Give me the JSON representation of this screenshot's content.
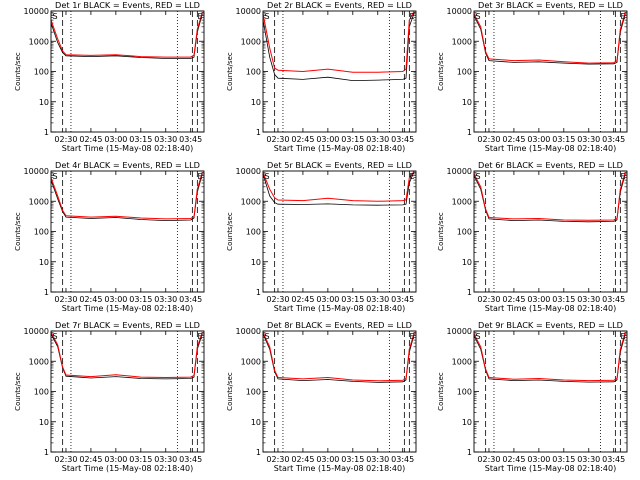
{
  "chart_data": [
    {
      "type": "line",
      "title": "Det 1r BLACK = Events, RED = LLD",
      "xlabel": "Start Time (15-May-08 02:18:40)",
      "ylabel": "Counts/sec",
      "y_scale": "log",
      "ylim": [
        1,
        10000
      ],
      "y_ticks": [
        "1",
        "10",
        "100",
        "1000",
        "10000"
      ],
      "xlim": [
        "02:21",
        "03:53"
      ],
      "x_ticks": [
        "02:30",
        "02:45",
        "03:00",
        "03:15",
        "03:30",
        "03:45"
      ],
      "markers": [
        "S",
        "E"
      ],
      "series": [
        {
          "name": "Events",
          "color": "#000000",
          "x": [
            "02:21",
            "02:25",
            "02:28",
            "02:30",
            "02:45",
            "03:00",
            "03:15",
            "03:30",
            "03:45",
            "03:47",
            "03:49",
            "03:52"
          ],
          "values": [
            4000,
            900,
            420,
            330,
            310,
            330,
            290,
            270,
            270,
            300,
            2000,
            8000
          ]
        },
        {
          "name": "LLD",
          "color": "#ff0000",
          "x": [
            "02:21",
            "02:25",
            "02:28",
            "02:30",
            "02:45",
            "03:00",
            "03:15",
            "03:30",
            "03:45",
            "03:47",
            "03:49",
            "03:52"
          ],
          "values": [
            5000,
            1200,
            480,
            360,
            340,
            360,
            310,
            300,
            300,
            350,
            2500,
            9000
          ]
        }
      ]
    },
    {
      "type": "line",
      "title": "Det 2r BLACK = Events, RED = LLD",
      "xlabel": "Start Time (15-May-08 02:18:40)",
      "ylabel": "Counts/sec",
      "y_scale": "log",
      "ylim": [
        1,
        10000
      ],
      "y_ticks": [
        "1",
        "10",
        "100",
        "1000",
        "10000"
      ],
      "xlim": [
        "02:21",
        "03:53"
      ],
      "x_ticks": [
        "02:30",
        "02:45",
        "03:00",
        "03:15",
        "03:30",
        "03:45"
      ],
      "markers": [
        "S",
        "E"
      ],
      "series": [
        {
          "name": "Events",
          "color": "#000000",
          "x": [
            "02:21",
            "02:25",
            "02:28",
            "02:30",
            "02:45",
            "03:00",
            "03:15",
            "03:30",
            "03:45",
            "03:47",
            "03:49",
            "03:52"
          ],
          "values": [
            5000,
            300,
            80,
            60,
            55,
            65,
            50,
            52,
            55,
            60,
            3000,
            9000
          ]
        },
        {
          "name": "LLD",
          "color": "#ff0000",
          "x": [
            "02:21",
            "02:25",
            "02:28",
            "02:30",
            "02:45",
            "03:00",
            "03:15",
            "03:30",
            "03:45",
            "03:47",
            "03:49",
            "03:52"
          ],
          "values": [
            8000,
            600,
            130,
            110,
            100,
            120,
            95,
            95,
            100,
            120,
            5000,
            10000
          ]
        }
      ]
    },
    {
      "type": "line",
      "title": "Det 3r BLACK = Events, RED = LLD",
      "xlabel": "Start Time (15-May-08 02:18:40)",
      "ylabel": "Counts/sec",
      "y_scale": "log",
      "ylim": [
        1,
        10000
      ],
      "y_ticks": [
        "1",
        "10",
        "100",
        "1000",
        "10000"
      ],
      "xlim": [
        "02:21",
        "03:53"
      ],
      "x_ticks": [
        "02:30",
        "02:45",
        "03:00",
        "03:15",
        "03:30",
        "03:45"
      ],
      "markers": [
        "S",
        "E"
      ],
      "series": [
        {
          "name": "Events",
          "color": "#000000",
          "x": [
            "02:21",
            "02:25",
            "02:28",
            "02:30",
            "02:45",
            "03:00",
            "03:15",
            "03:30",
            "03:45",
            "03:47",
            "03:49",
            "03:52"
          ],
          "values": [
            7000,
            2500,
            400,
            230,
            200,
            210,
            190,
            175,
            180,
            200,
            2000,
            8000
          ]
        },
        {
          "name": "LLD",
          "color": "#ff0000",
          "x": [
            "02:21",
            "02:25",
            "02:28",
            "02:30",
            "02:45",
            "03:00",
            "03:15",
            "03:30",
            "03:45",
            "03:47",
            "03:49",
            "03:52"
          ],
          "values": [
            8000,
            3000,
            450,
            260,
            230,
            240,
            210,
            190,
            195,
            230,
            2500,
            9000
          ]
        }
      ]
    },
    {
      "type": "line",
      "title": "Det 4r BLACK = Events, RED = LLD",
      "xlabel": "Start Time (15-May-08 02:18:40)",
      "ylabel": "Counts/sec",
      "y_scale": "log",
      "ylim": [
        1,
        10000
      ],
      "y_ticks": [
        "1",
        "10",
        "100",
        "1000",
        "10000"
      ],
      "xlim": [
        "02:21",
        "03:53"
      ],
      "x_ticks": [
        "02:30",
        "02:45",
        "03:00",
        "03:15",
        "03:30",
        "03:45"
      ],
      "markers": [
        "S",
        "E"
      ],
      "series": [
        {
          "name": "Events",
          "color": "#000000",
          "x": [
            "02:21",
            "02:25",
            "02:28",
            "02:30",
            "02:45",
            "03:00",
            "03:15",
            "03:30",
            "03:45",
            "03:47",
            "03:49",
            "03:52"
          ],
          "values": [
            5000,
            1200,
            450,
            300,
            270,
            290,
            250,
            230,
            240,
            280,
            2000,
            8000
          ]
        },
        {
          "name": "LLD",
          "color": "#ff0000",
          "x": [
            "02:21",
            "02:25",
            "02:28",
            "02:30",
            "02:45",
            "03:00",
            "03:15",
            "03:30",
            "03:45",
            "03:47",
            "03:49",
            "03:52"
          ],
          "values": [
            6000,
            1500,
            500,
            330,
            300,
            320,
            280,
            260,
            270,
            310,
            2500,
            9000
          ]
        }
      ]
    },
    {
      "type": "line",
      "title": "Det 5r BLACK = Events, RED = LLD",
      "xlabel": "Start Time (15-May-08 02:18:40)",
      "ylabel": "Counts/sec",
      "y_scale": "log",
      "ylim": [
        1,
        10000
      ],
      "y_ticks": [
        "1",
        "10",
        "100",
        "1000",
        "10000"
      ],
      "xlim": [
        "02:21",
        "03:53"
      ],
      "x_ticks": [
        "02:30",
        "02:45",
        "03:00",
        "03:15",
        "03:30",
        "03:45"
      ],
      "markers": [
        "S",
        "E"
      ],
      "series": [
        {
          "name": "Events",
          "color": "#000000",
          "x": [
            "02:21",
            "02:25",
            "02:28",
            "02:30",
            "02:45",
            "03:00",
            "03:15",
            "03:30",
            "03:45",
            "03:47",
            "03:49",
            "03:52"
          ],
          "values": [
            8000,
            1500,
            900,
            800,
            780,
            820,
            760,
            740,
            760,
            800,
            4000,
            10000
          ]
        },
        {
          "name": "LLD",
          "color": "#ff0000",
          "x": [
            "02:21",
            "02:25",
            "02:28",
            "02:30",
            "02:45",
            "03:00",
            "03:15",
            "03:30",
            "03:45",
            "03:47",
            "03:49",
            "03:52"
          ],
          "values": [
            9000,
            2500,
            1300,
            1100,
            1050,
            1250,
            1050,
            1000,
            1050,
            1100,
            6000,
            10000
          ]
        }
      ]
    },
    {
      "type": "line",
      "title": "Det 6r BLACK = Events, RED = LLD",
      "xlabel": "Start Time (15-May-08 02:18:40)",
      "ylabel": "Counts/sec",
      "y_scale": "log",
      "ylim": [
        1,
        10000
      ],
      "y_ticks": [
        "1",
        "10",
        "100",
        "1000",
        "10000"
      ],
      "xlim": [
        "02:21",
        "03:53"
      ],
      "x_ticks": [
        "02:30",
        "02:45",
        "03:00",
        "03:15",
        "03:30",
        "03:45"
      ],
      "markers": [
        "S",
        "E"
      ],
      "series": [
        {
          "name": "Events",
          "color": "#000000",
          "x": [
            "02:21",
            "02:25",
            "02:28",
            "02:30",
            "02:45",
            "03:00",
            "03:15",
            "03:30",
            "03:45",
            "03:47",
            "03:49",
            "03:52"
          ],
          "values": [
            7000,
            2500,
            500,
            260,
            230,
            240,
            215,
            210,
            215,
            240,
            2000,
            8000
          ]
        },
        {
          "name": "LLD",
          "color": "#ff0000",
          "x": [
            "02:21",
            "02:25",
            "02:28",
            "02:30",
            "02:45",
            "03:00",
            "03:15",
            "03:30",
            "03:45",
            "03:47",
            "03:49",
            "03:52"
          ],
          "values": [
            8000,
            3000,
            550,
            290,
            260,
            270,
            240,
            235,
            240,
            270,
            2500,
            9000
          ]
        }
      ]
    },
    {
      "type": "line",
      "title": "Det 7r BLACK = Events, RED = LLD",
      "xlabel": "Start Time (15-May-08 02:18:40)",
      "ylabel": "Counts/sec",
      "y_scale": "log",
      "ylim": [
        1,
        10000
      ],
      "y_ticks": [
        "1",
        "10",
        "100",
        "1000",
        "10000"
      ],
      "xlim": [
        "02:21",
        "03:53"
      ],
      "x_ticks": [
        "02:30",
        "02:45",
        "03:00",
        "03:15",
        "03:30",
        "03:45"
      ],
      "markers": [
        "S",
        "E"
      ],
      "series": [
        {
          "name": "Events",
          "color": "#000000",
          "x": [
            "02:21",
            "02:25",
            "02:28",
            "02:30",
            "02:45",
            "03:00",
            "03:15",
            "03:30",
            "03:45",
            "03:47",
            "03:49",
            "03:52"
          ],
          "values": [
            8000,
            3000,
            600,
            320,
            280,
            310,
            270,
            260,
            270,
            300,
            2500,
            8000
          ]
        },
        {
          "name": "LLD",
          "color": "#ff0000",
          "x": [
            "02:21",
            "02:25",
            "02:28",
            "02:30",
            "02:45",
            "03:00",
            "03:15",
            "03:30",
            "03:45",
            "03:47",
            "03:49",
            "03:52"
          ],
          "values": [
            9000,
            3500,
            650,
            350,
            310,
            360,
            300,
            290,
            300,
            340,
            3000,
            9000
          ]
        }
      ]
    },
    {
      "type": "line",
      "title": "Det 8r BLACK = Events, RED = LLD",
      "xlabel": "Start Time (15-May-08 02:18:40)",
      "ylabel": "Counts/sec",
      "y_scale": "log",
      "ylim": [
        1,
        10000
      ],
      "y_ticks": [
        "1",
        "10",
        "100",
        "1000",
        "10000"
      ],
      "xlim": [
        "02:21",
        "03:53"
      ],
      "x_ticks": [
        "02:30",
        "02:45",
        "03:00",
        "03:15",
        "03:30",
        "03:45"
      ],
      "markers": [
        "S",
        "E"
      ],
      "series": [
        {
          "name": "Events",
          "color": "#000000",
          "x": [
            "02:21",
            "02:25",
            "02:28",
            "02:30",
            "02:45",
            "03:00",
            "03:15",
            "03:30",
            "03:45",
            "03:47",
            "03:49",
            "03:52"
          ],
          "values": [
            8000,
            2500,
            450,
            260,
            230,
            250,
            215,
            200,
            210,
            240,
            2000,
            8000
          ]
        },
        {
          "name": "LLD",
          "color": "#ff0000",
          "x": [
            "02:21",
            "02:25",
            "02:28",
            "02:30",
            "02:45",
            "03:00",
            "03:15",
            "03:30",
            "03:45",
            "03:47",
            "03:49",
            "03:52"
          ],
          "values": [
            9000,
            3000,
            500,
            290,
            260,
            290,
            240,
            225,
            235,
            270,
            2500,
            9000
          ]
        }
      ]
    },
    {
      "type": "line",
      "title": "Det 9r BLACK = Events, RED = LLD",
      "xlabel": "Start Time (15-May-08 02:18:40)",
      "ylabel": "Counts/sec",
      "y_scale": "log",
      "ylim": [
        1,
        10000
      ],
      "y_ticks": [
        "1",
        "10",
        "100",
        "1000",
        "10000"
      ],
      "xlim": [
        "02:21",
        "03:53"
      ],
      "x_ticks": [
        "02:30",
        "02:45",
        "03:00",
        "03:15",
        "03:30",
        "03:45"
      ],
      "markers": [
        "S",
        "E"
      ],
      "series": [
        {
          "name": "Events",
          "color": "#000000",
          "x": [
            "02:21",
            "02:25",
            "02:28",
            "02:30",
            "02:45",
            "03:00",
            "03:15",
            "03:30",
            "03:45",
            "03:47",
            "03:49",
            "03:52"
          ],
          "values": [
            7000,
            2500,
            500,
            260,
            230,
            240,
            215,
            205,
            210,
            240,
            2000,
            8000
          ]
        },
        {
          "name": "LLD",
          "color": "#ff0000",
          "x": [
            "02:21",
            "02:25",
            "02:28",
            "02:30",
            "02:45",
            "03:00",
            "03:15",
            "03:30",
            "03:45",
            "03:47",
            "03:49",
            "03:52"
          ],
          "values": [
            8000,
            3000,
            550,
            290,
            255,
            270,
            240,
            230,
            235,
            270,
            2500,
            9000
          ]
        }
      ]
    }
  ]
}
